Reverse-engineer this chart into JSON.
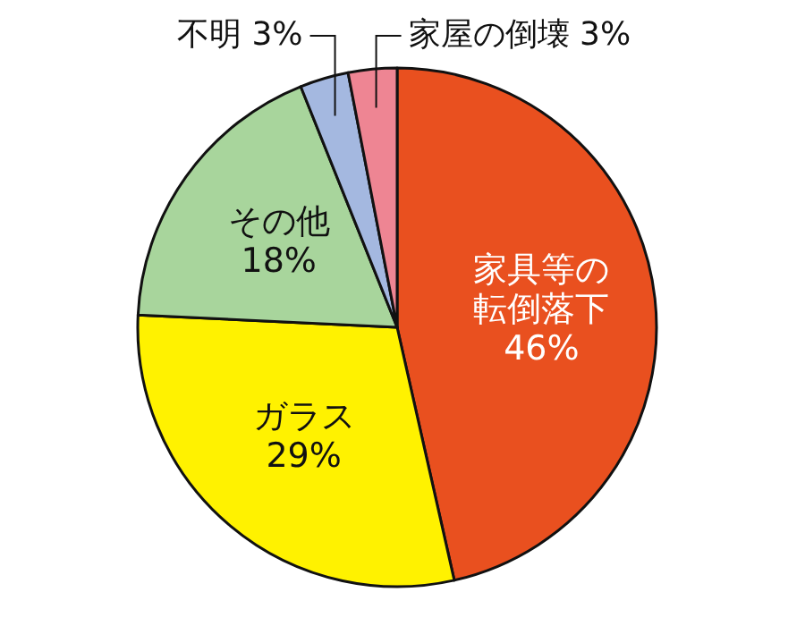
{
  "chart_data": {
    "type": "pie",
    "categories": [
      "家具等の転倒落下",
      "ガラス",
      "その他",
      "不明",
      "家屋の倒壊"
    ],
    "values": [
      46,
      29,
      18,
      3,
      3
    ],
    "value_labels": [
      "46%",
      "29%",
      "18%",
      "3%",
      "3%"
    ],
    "colors": [
      "#e9501f",
      "#fff200",
      "#a8d59c",
      "#a4b8e0",
      "#ee8593"
    ]
  }
}
